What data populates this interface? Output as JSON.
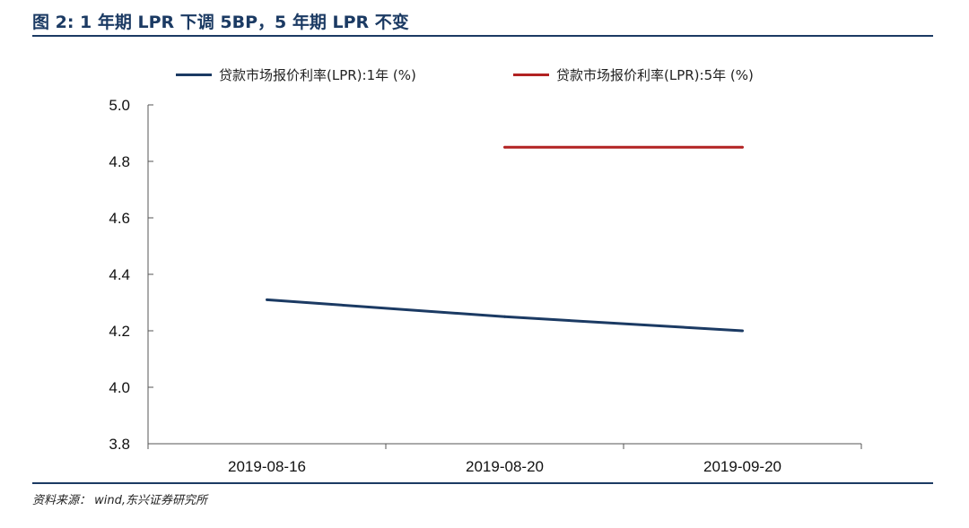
{
  "figure": {
    "title": "图 2: 1 年期 LPR 下调 5BP，5 年期 LPR 不变",
    "source": "资料来源： wind,东兴证券研究所"
  },
  "chart_data": {
    "type": "line",
    "categories": [
      "2019-08-16",
      "2019-08-20",
      "2019-09-20"
    ],
    "ylim": [
      3.8,
      5.0
    ],
    "yticks": [
      "5.0",
      "4.8",
      "4.6",
      "4.4",
      "4.2",
      "4.0",
      "3.8"
    ],
    "grid": false,
    "legend_position": "top",
    "series": [
      {
        "name": "贷款市场报价利率(LPR):1年 (%)",
        "color": "#1b3a63",
        "values": [
          4.31,
          4.25,
          4.2
        ]
      },
      {
        "name": "贷款市场报价利率(LPR):5年 (%)",
        "color": "#b22222",
        "values": [
          null,
          4.85,
          4.85
        ]
      }
    ]
  }
}
